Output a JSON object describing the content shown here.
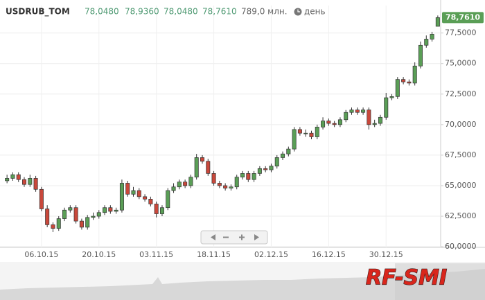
{
  "chart_data": {
    "type": "candlestick",
    "header": {
      "symbol": "USDRUB_TOM",
      "open": "78,0480",
      "high": "78,9360",
      "low": "78,0480",
      "close": "78,7610",
      "volume": "789,0 млн.",
      "interval": "день"
    },
    "categories": [
      null,
      null,
      null,
      null,
      null,
      null,
      "06.10.15",
      null,
      null,
      null,
      null,
      null,
      null,
      null,
      null,
      null,
      "20.10.15",
      null,
      null,
      null,
      null,
      null,
      null,
      null,
      null,
      null,
      "03.11.15",
      null,
      null,
      null,
      null,
      null,
      null,
      null,
      null,
      null,
      "18.11.15",
      null,
      null,
      null,
      null,
      null,
      null,
      null,
      null,
      null,
      "02.12.15",
      null,
      null,
      null,
      null,
      null,
      null,
      null,
      null,
      null,
      "16.12.15",
      null,
      null,
      null,
      null,
      null,
      null,
      null,
      null,
      null,
      "30.12.15",
      null,
      null,
      null,
      null,
      null,
      null,
      null,
      null,
      null
    ],
    "open": [
      65.4,
      65.6,
      65.9,
      65.5,
      65.1,
      65.6,
      64.7,
      63.1,
      61.8,
      61.5,
      62.3,
      63.0,
      63.2,
      62.1,
      61.6,
      62.4,
      62.5,
      62.8,
      63.2,
      62.9,
      63.0,
      65.2,
      64.3,
      64.6,
      64.1,
      63.9,
      63.5,
      62.7,
      63.2,
      64.6,
      64.9,
      65.3,
      65.0,
      65.7,
      67.3,
      67.0,
      66.0,
      65.2,
      65.0,
      64.8,
      64.9,
      65.7,
      66.0,
      65.5,
      66.0,
      66.4,
      66.3,
      66.6,
      67.3,
      67.6,
      68.0,
      69.6,
      69.3,
      69.3,
      69.0,
      69.8,
      70.3,
      70.1,
      70.0,
      70.4,
      71.0,
      71.2,
      71.0,
      71.2,
      70.0,
      70.1,
      70.6,
      72.2,
      72.3,
      73.7,
      73.5,
      73.4,
      74.8,
      76.5,
      77.0,
      78.048
    ],
    "high": [
      65.9,
      66.1,
      66.1,
      65.7,
      65.9,
      65.8,
      64.9,
      63.4,
      62.0,
      62.5,
      63.2,
      63.4,
      63.4,
      62.3,
      62.6,
      62.8,
      63.0,
      63.4,
      63.4,
      63.2,
      65.5,
      65.4,
      64.9,
      64.8,
      64.3,
      64.1,
      63.7,
      63.4,
      64.8,
      65.2,
      65.5,
      65.5,
      65.9,
      67.6,
      67.5,
      67.2,
      66.2,
      65.4,
      65.2,
      65.1,
      65.9,
      66.2,
      66.2,
      66.2,
      66.6,
      66.6,
      66.8,
      67.5,
      67.8,
      68.2,
      69.8,
      69.8,
      69.6,
      69.5,
      70.0,
      70.6,
      70.5,
      70.3,
      70.6,
      71.2,
      71.4,
      71.4,
      71.4,
      71.4,
      70.4,
      70.8,
      72.6,
      72.5,
      73.9,
      73.9,
      73.7,
      75.1,
      76.8,
      77.3,
      77.6,
      78.936
    ],
    "low": [
      65.2,
      65.4,
      65.3,
      64.9,
      64.9,
      64.5,
      62.9,
      61.6,
      61.2,
      61.3,
      62.1,
      62.8,
      61.9,
      61.4,
      61.4,
      62.2,
      62.3,
      62.6,
      62.7,
      62.7,
      62.8,
      64.1,
      64.1,
      63.9,
      63.7,
      63.3,
      62.4,
      62.5,
      63.0,
      64.4,
      64.7,
      64.8,
      64.8,
      65.5,
      66.8,
      65.8,
      65.0,
      64.8,
      64.6,
      64.6,
      64.7,
      65.5,
      65.3,
      65.3,
      65.8,
      66.1,
      66.1,
      66.4,
      67.1,
      67.4,
      67.8,
      69.1,
      69.0,
      68.8,
      68.8,
      69.6,
      69.9,
      69.8,
      69.8,
      70.2,
      70.8,
      70.8,
      70.8,
      69.6,
      69.8,
      69.9,
      70.4,
      72.0,
      72.1,
      73.3,
      73.2,
      73.2,
      74.6,
      76.3,
      76.8,
      78.048
    ],
    "close": [
      65.6,
      65.9,
      65.5,
      65.1,
      65.6,
      64.7,
      63.1,
      61.8,
      61.5,
      62.3,
      63.0,
      63.2,
      62.1,
      61.6,
      62.4,
      62.5,
      62.8,
      63.2,
      62.9,
      63.0,
      65.2,
      64.3,
      64.6,
      64.1,
      63.9,
      63.5,
      62.7,
      63.2,
      64.6,
      64.9,
      65.3,
      65.0,
      65.7,
      67.3,
      67.0,
      66.0,
      65.2,
      65.0,
      64.8,
      64.9,
      65.7,
      66.0,
      65.5,
      66.0,
      66.4,
      66.3,
      66.6,
      67.3,
      67.6,
      68.0,
      69.6,
      69.3,
      69.3,
      69.0,
      69.8,
      70.3,
      70.1,
      70.0,
      70.4,
      71.0,
      71.2,
      71.0,
      71.2,
      70.0,
      70.1,
      70.6,
      72.2,
      72.3,
      73.7,
      73.5,
      73.4,
      74.8,
      76.5,
      77.0,
      77.4,
      78.761
    ],
    "up_color": "#5a9e56",
    "down_color": "#c9483b",
    "ylim": [
      59.95,
      79.75
    ],
    "yticks": [
      {
        "value": 60,
        "label": "60,0000"
      },
      {
        "value": 62.5,
        "label": "62,5000"
      },
      {
        "value": 65,
        "label": "65,0000"
      },
      {
        "value": 67.5,
        "label": "67,5000"
      },
      {
        "value": 70,
        "label": "70,0000"
      },
      {
        "value": 72.5,
        "label": "72,5000"
      },
      {
        "value": 75,
        "label": "75,0000"
      },
      {
        "value": 77.5,
        "label": "77,5000"
      }
    ],
    "grid": true,
    "watermark": "RF-SMI"
  }
}
